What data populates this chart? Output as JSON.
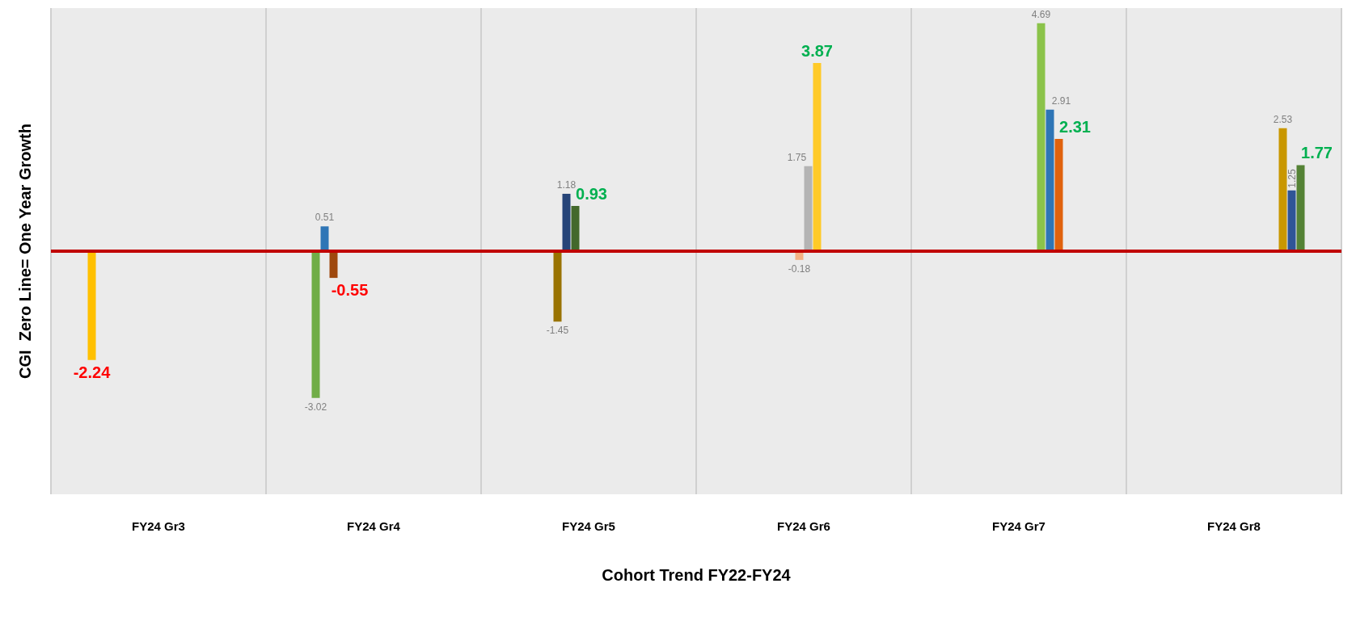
{
  "chart_data": {
    "type": "bar",
    "xlabel": "Cohort Trend FY22-FY24",
    "ylabel": "CGI  Zero Line= One Year Growth",
    "categories": [
      "FY24 Gr3",
      "FY24 Gr4",
      "FY24 Gr5",
      "FY24 Gr6",
      "FY24 Gr7",
      "FY24 Gr8"
    ],
    "series": [
      {
        "color": "#ffc000",
        "values": [
          -2.24,
          null,
          null,
          null,
          null,
          null
        ]
      },
      {
        "color": "#70ad47",
        "values": [
          null,
          -3.02,
          null,
          null,
          null,
          null
        ]
      },
      {
        "color": "#2e75b6",
        "values": [
          null,
          0.51,
          null,
          null,
          null,
          null
        ]
      },
      {
        "color": "#9e480e",
        "values": [
          null,
          -0.55,
          null,
          null,
          null,
          null
        ]
      },
      {
        "color": "#997300",
        "values": [
          null,
          null,
          -1.45,
          null,
          null,
          null
        ]
      },
      {
        "color": "#264478",
        "values": [
          null,
          null,
          1.18,
          null,
          null,
          null
        ]
      },
      {
        "color": "#43682b",
        "values": [
          null,
          null,
          0.93,
          null,
          null,
          null
        ]
      },
      {
        "color": "#f4b183",
        "values": [
          null,
          null,
          null,
          -0.18,
          null,
          null
        ]
      },
      {
        "color": "#b4b4b4",
        "values": [
          null,
          null,
          null,
          1.75,
          null,
          null
        ]
      },
      {
        "color": "#ffca28",
        "values": [
          null,
          null,
          null,
          3.87,
          null,
          null
        ]
      },
      {
        "color": "#8bc34a",
        "values": [
          null,
          null,
          null,
          null,
          4.69,
          null
        ]
      },
      {
        "color": "#2e75b6",
        "values": [
          null,
          null,
          null,
          null,
          2.91,
          null
        ]
      },
      {
        "color": "#e0620d",
        "values": [
          null,
          null,
          null,
          null,
          2.31,
          null
        ]
      },
      {
        "color": "#c99700",
        "values": [
          null,
          null,
          null,
          null,
          null,
          2.53
        ]
      },
      {
        "color": "#2f5597",
        "values": [
          null,
          null,
          null,
          null,
          null,
          1.25
        ]
      },
      {
        "color": "#548235",
        "values": [
          null,
          null,
          null,
          null,
          null,
          1.77
        ]
      }
    ],
    "ylim": [
      -5,
      5
    ],
    "tick_labels": "x",
    "grid": "x",
    "data_labels": true,
    "ref_lines": [
      {
        "axis": "y",
        "value": 0,
        "color": "#c00000"
      }
    ]
  }
}
